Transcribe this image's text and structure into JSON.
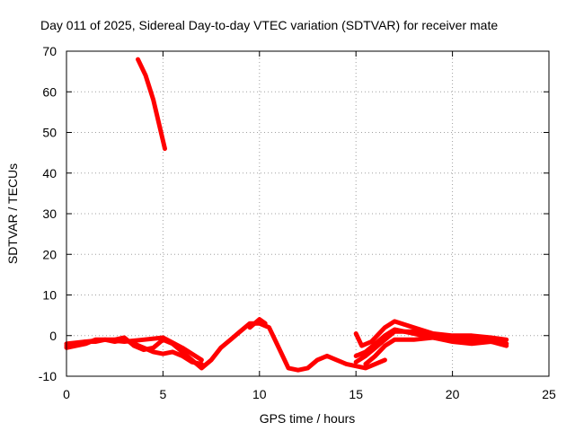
{
  "chart_data": {
    "type": "line",
    "title": "Day 011 of 2025, Sidereal Day-to-day VTEC variation (SDTVAR) for receiver mate",
    "xlabel": "GPS time / hours",
    "ylabel": "SDTVAR / TECUs",
    "xlim": [
      0,
      25
    ],
    "ylim": [
      -10,
      70
    ],
    "xticks": [
      0,
      5,
      10,
      15,
      20,
      25
    ],
    "yticks": [
      -10,
      0,
      10,
      20,
      30,
      40,
      50,
      60,
      70
    ],
    "grid": true,
    "color": "#ff0000",
    "series": [
      {
        "name": "track-a-rising",
        "x": [
          3.7,
          4.1,
          4.5,
          4.8,
          5.1
        ],
        "y": [
          68,
          64,
          58,
          52,
          46
        ]
      },
      {
        "name": "track-b",
        "x": [
          0,
          0.5,
          1,
          1.5,
          2,
          2.5,
          3,
          3.5,
          4,
          4.5,
          5,
          5.5,
          6,
          6.5,
          7,
          7.5,
          8,
          8.5,
          9,
          9.5,
          10,
          10.5,
          11,
          11.5,
          12,
          12.5,
          13,
          13.5,
          14,
          14.5,
          15,
          15.5,
          16,
          16.5
        ],
        "y": [
          -2.5,
          -2,
          -1.5,
          -1.5,
          -1,
          -1,
          -0.5,
          -2.5,
          -3.5,
          -3,
          -1,
          -2,
          -4,
          -6,
          -8,
          -6,
          -3,
          -1,
          1,
          3,
          3,
          2,
          -3,
          -8,
          -8.5,
          -8,
          -6,
          -5,
          -6,
          -7,
          -7.5,
          -8,
          -7,
          -6
        ]
      },
      {
        "name": "track-c",
        "x": [
          0,
          0.5,
          1,
          1.5,
          2,
          2.5,
          3,
          3.5,
          4,
          4.5,
          5,
          5.5,
          6,
          6.5,
          7
        ],
        "y": [
          -3,
          -2.5,
          -2,
          -1,
          -1,
          -1.5,
          -1,
          -2,
          -3,
          -4,
          -4.5,
          -4,
          -5,
          -6.5,
          -7
        ]
      },
      {
        "name": "track-d",
        "x": [
          0,
          1,
          2,
          3,
          4,
          5,
          6,
          7
        ],
        "y": [
          -2,
          -1.5,
          -1,
          -1.5,
          -1,
          -0.5,
          -3,
          -6
        ]
      },
      {
        "name": "track-e",
        "x": [
          9.5,
          10,
          10.3
        ],
        "y": [
          2,
          4,
          3
        ]
      },
      {
        "name": "track-f",
        "x": [
          15,
          15.3,
          15.8,
          16.5,
          17,
          18,
          19,
          20,
          21,
          22,
          22.8
        ],
        "y": [
          0.5,
          -2.5,
          -1.5,
          2,
          3.5,
          2,
          0.5,
          0,
          0,
          -0.5,
          -1
        ]
      },
      {
        "name": "track-g",
        "x": [
          15,
          15.5,
          16,
          16.5,
          17,
          18,
          19,
          20,
          21,
          22,
          22.8
        ],
        "y": [
          -6.5,
          -5,
          -3,
          -1,
          1,
          1,
          0,
          -1,
          -0.5,
          -1,
          -2
        ]
      },
      {
        "name": "track-h",
        "x": [
          15,
          15.5,
          16,
          16.5,
          17,
          18,
          19,
          20,
          21,
          22,
          22.8
        ],
        "y": [
          -5,
          -4,
          -2,
          0,
          1.5,
          0.5,
          -0.5,
          -1,
          -1,
          -1.5,
          -2
        ]
      },
      {
        "name": "track-i",
        "x": [
          15.5,
          16,
          16.5,
          17,
          18,
          19,
          20,
          21,
          22,
          22.8
        ],
        "y": [
          -7,
          -5,
          -2.5,
          -1,
          -1,
          -0.5,
          -1.5,
          -2,
          -1.5,
          -2.5
        ]
      }
    ]
  }
}
